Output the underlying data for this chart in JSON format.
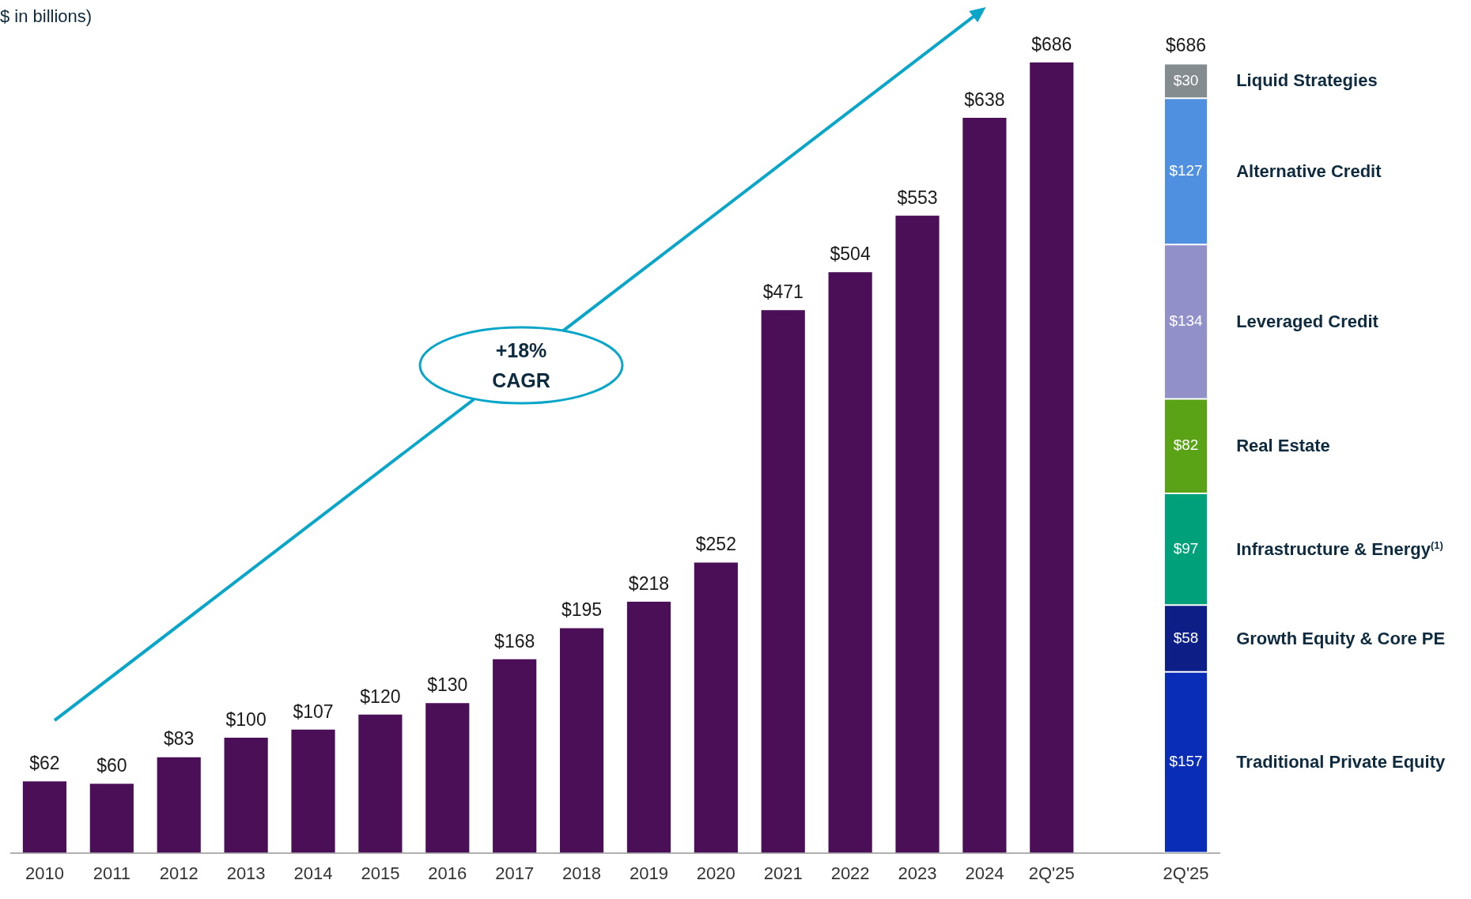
{
  "chart_data": {
    "type": "bar",
    "subtitle": "$ in billions)",
    "stacked": true,
    "legend": false,
    "grid": false,
    "tick_labels": "x",
    "categories": [
      "2010",
      "2011",
      "2012",
      "2013",
      "2014",
      "2015",
      "2016",
      "2017",
      "2018",
      "2019",
      "2020",
      "2021",
      "2022",
      "2023",
      "2024",
      "2Q'25",
      null,
      "2Q'25"
    ],
    "series": [
      {
        "color": "#4a0f57",
        "values": [
          62,
          60,
          83,
          100,
          107,
          120,
          130,
          168,
          195,
          218,
          252,
          471,
          504,
          553,
          638,
          686,
          null,
          null
        ],
        "value_labels": [
          "$62",
          "$60",
          "$83",
          "$100",
          "$107",
          "$120",
          "$130",
          "$168",
          "$195",
          "$218",
          "$252",
          "$471",
          "$504",
          "$553",
          "$638",
          "$686",
          null,
          null
        ]
      },
      {
        "name": "Traditional Private Equity",
        "color": "#0a2db8",
        "values": [
          null,
          null,
          null,
          null,
          null,
          null,
          null,
          null,
          null,
          null,
          null,
          null,
          null,
          null,
          null,
          null,
          null,
          157
        ],
        "value_labels": [
          null,
          null,
          null,
          null,
          null,
          null,
          null,
          null,
          null,
          null,
          null,
          null,
          null,
          null,
          null,
          null,
          null,
          "$157"
        ]
      },
      {
        "name": "Growth Equity & Core PE",
        "color": "#0d1f86",
        "values": [
          null,
          null,
          null,
          null,
          null,
          null,
          null,
          null,
          null,
          null,
          null,
          null,
          null,
          null,
          null,
          null,
          null,
          58
        ],
        "value_labels": [
          null,
          null,
          null,
          null,
          null,
          null,
          null,
          null,
          null,
          null,
          null,
          null,
          null,
          null,
          null,
          null,
          null,
          "$58"
        ]
      },
      {
        "name": "Infrastructure & Energy$^{(1)}$",
        "color": "#00a07a",
        "values": [
          null,
          null,
          null,
          null,
          null,
          null,
          null,
          null,
          null,
          null,
          null,
          null,
          null,
          null,
          null,
          null,
          null,
          97
        ],
        "value_labels": [
          null,
          null,
          null,
          null,
          null,
          null,
          null,
          null,
          null,
          null,
          null,
          null,
          null,
          null,
          null,
          null,
          null,
          "$97"
        ]
      },
      {
        "name": "Real Estate",
        "color": "#5aa317",
        "values": [
          null,
          null,
          null,
          null,
          null,
          null,
          null,
          null,
          null,
          null,
          null,
          null,
          null,
          null,
          null,
          null,
          null,
          82
        ],
        "value_labels": [
          null,
          null,
          null,
          null,
          null,
          null,
          null,
          null,
          null,
          null,
          null,
          null,
          null,
          null,
          null,
          null,
          null,
          "$82"
        ]
      },
      {
        "name": "Leveraged Credit",
        "color": "#9290c8",
        "values": [
          null,
          null,
          null,
          null,
          null,
          null,
          null,
          null,
          null,
          null,
          null,
          null,
          null,
          null,
          null,
          null,
          null,
          134
        ],
        "value_labels": [
          null,
          null,
          null,
          null,
          null,
          null,
          null,
          null,
          null,
          null,
          null,
          null,
          null,
          null,
          null,
          null,
          null,
          "$134"
        ]
      },
      {
        "name": "Alternative Credit",
        "color": "#5090e0",
        "values": [
          null,
          null,
          null,
          null,
          null,
          null,
          null,
          null,
          null,
          null,
          null,
          null,
          null,
          null,
          null,
          null,
          null,
          127
        ],
        "value_labels": [
          null,
          null,
          null,
          null,
          null,
          null,
          null,
          null,
          null,
          null,
          null,
          null,
          null,
          null,
          null,
          null,
          null,
          "$127"
        ]
      },
      {
        "name": "Liquid Strategies",
        "color": "#848c90",
        "values": [
          null,
          null,
          null,
          null,
          null,
          null,
          null,
          null,
          null,
          null,
          null,
          null,
          null,
          null,
          null,
          null,
          null,
          30
        ],
        "value_labels": [
          null,
          null,
          null,
          null,
          null,
          null,
          null,
          null,
          null,
          null,
          null,
          null,
          null,
          null,
          null,
          null,
          null,
          "$30"
        ]
      }
    ],
    "totals": [
      null,
      null,
      null,
      null,
      null,
      null,
      null,
      null,
      null,
      null,
      null,
      null,
      null,
      null,
      null,
      null,
      null,
      "$686"
    ],
    "annotations": [
      "+18% CAGR"
    ]
  }
}
